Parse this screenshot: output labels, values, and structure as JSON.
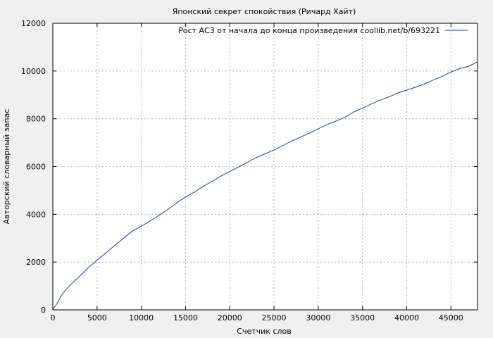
{
  "chart_data": {
    "type": "line",
    "title": "Японский секрет спокойствия (Ричард Хайт)",
    "xlabel": "Счетчик слов",
    "ylabel": "Авторский словарный запас",
    "xlim": [
      0,
      48000
    ],
    "ylim": [
      0,
      12000
    ],
    "xticks": [
      0,
      5000,
      10000,
      15000,
      20000,
      25000,
      30000,
      35000,
      40000,
      45000
    ],
    "yticks": [
      0,
      2000,
      4000,
      6000,
      8000,
      10000,
      12000
    ],
    "grid": true,
    "legend_position": "top-right",
    "series": [
      {
        "name": "Рост АСЗ от начала до конца произведения coollib.net/b/693221",
        "color": "#1f3f8f",
        "x": [
          0,
          500,
          1000,
          1500,
          2000,
          3000,
          4000,
          5000,
          6000,
          7000,
          8000,
          9000,
          10000,
          11000,
          12000,
          13000,
          14000,
          15000,
          16000,
          17000,
          18000,
          19000,
          20000,
          21000,
          22000,
          23000,
          24000,
          25000,
          26000,
          27000,
          28000,
          29000,
          30000,
          31000,
          32000,
          33000,
          34000,
          35000,
          36000,
          37000,
          38000,
          39000,
          40000,
          41000,
          42000,
          43000,
          44000,
          45000,
          46000,
          47000,
          48000
        ],
        "y": [
          0,
          280,
          620,
          850,
          1050,
          1400,
          1760,
          2080,
          2380,
          2700,
          3000,
          3300,
          3500,
          3720,
          3960,
          4200,
          4480,
          4720,
          4930,
          5170,
          5380,
          5600,
          5800,
          5980,
          6180,
          6380,
          6530,
          6700,
          6880,
          7070,
          7230,
          7400,
          7580,
          7760,
          7900,
          8060,
          8280,
          8450,
          8620,
          8780,
          8920,
          9080,
          9200,
          9320,
          9460,
          9620,
          9780,
          9960,
          10100,
          10200,
          10380
        ]
      }
    ]
  }
}
